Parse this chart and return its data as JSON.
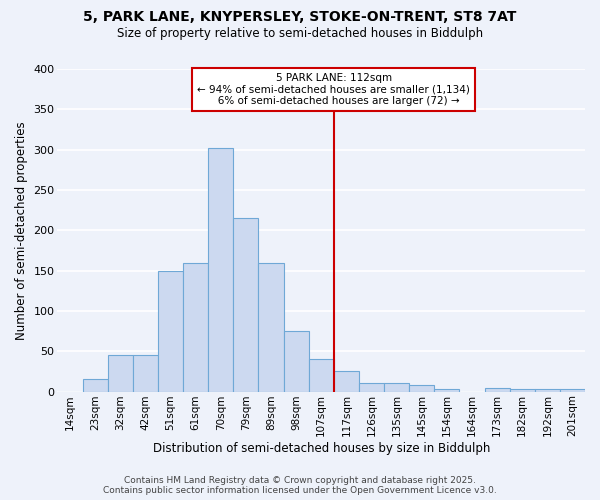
{
  "title_line1": "5, PARK LANE, KNYPERSLEY, STOKE-ON-TRENT, ST8 7AT",
  "title_line2": "Size of property relative to semi-detached houses in Biddulph",
  "xlabel": "Distribution of semi-detached houses by size in Biddulph",
  "ylabel": "Number of semi-detached properties",
  "categories": [
    "14sqm",
    "23sqm",
    "32sqm",
    "42sqm",
    "51sqm",
    "61sqm",
    "70sqm",
    "79sqm",
    "89sqm",
    "98sqm",
    "107sqm",
    "117sqm",
    "126sqm",
    "135sqm",
    "145sqm",
    "154sqm",
    "164sqm",
    "173sqm",
    "182sqm",
    "192sqm",
    "201sqm"
  ],
  "values": [
    0,
    15,
    45,
    45,
    150,
    160,
    302,
    215,
    160,
    75,
    40,
    25,
    10,
    10,
    8,
    3,
    0,
    5,
    3,
    3,
    3
  ],
  "bar_color": "#ccd9f0",
  "bar_edge_color": "#6fa8d6",
  "property_label": "5 PARK LANE: 112sqm",
  "pct_smaller": 94,
  "n_smaller": 1134,
  "pct_larger": 6,
  "n_larger": 72,
  "vline_color": "#cc0000",
  "ylim": [
    0,
    400
  ],
  "yticks": [
    0,
    50,
    100,
    150,
    200,
    250,
    300,
    350,
    400
  ],
  "annotation_box_color": "#ffffff",
  "annotation_box_edge": "#cc0000",
  "bg_color": "#eef2fa",
  "grid_color": "#ffffff",
  "footer": "Contains HM Land Registry data © Crown copyright and database right 2025.\nContains public sector information licensed under the Open Government Licence v3.0."
}
